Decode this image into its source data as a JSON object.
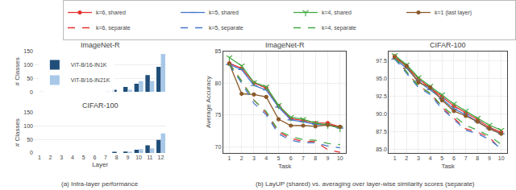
{
  "chart_data": [
    {
      "type": "bar",
      "title": "ImageNet-R",
      "categories": [
        "1",
        "2",
        "3",
        "4",
        "5",
        "6",
        "7",
        "8",
        "9",
        "10",
        "11",
        "12"
      ],
      "series": [
        {
          "name": "ViT-B/16-IN1K",
          "color": "#204e79",
          "values": [
            0,
            0,
            0,
            0,
            0,
            0,
            0,
            8,
            18,
            30,
            62,
            92
          ]
        },
        {
          "name": "ViT-B/16-IN21K",
          "color": "#a8c8e8",
          "values": [
            3,
            0,
            0,
            0,
            0,
            0,
            2,
            0,
            8,
            40,
            40,
            140
          ]
        }
      ],
      "ylabel": "# Classes",
      "ylim": [
        0,
        150
      ],
      "yticks": [
        0,
        50,
        100,
        150
      ],
      "grid": "y",
      "legend": "upper left",
      "tick_labels": "y"
    },
    {
      "type": "bar",
      "title": "CIFAR-100",
      "categories": [
        "1",
        "2",
        "3",
        "4",
        "5",
        "6",
        "7",
        "8",
        "9",
        "10",
        "11",
        "12"
      ],
      "series": [
        {
          "name": "ViT-B/16-IN1K",
          "color": "#204e79",
          "values": [
            0,
            0,
            0,
            0,
            0,
            0,
            0,
            3,
            5,
            12,
            28,
            48
          ]
        },
        {
          "name": "ViT-B/16-IN21K",
          "color": "#a8c8e8",
          "values": [
            0,
            0,
            0,
            0,
            0,
            0,
            0,
            0,
            3,
            14,
            17,
            72
          ]
        }
      ],
      "xlabel": "Layer",
      "ylabel": "# Classes",
      "ylim": [
        0,
        150
      ],
      "yticks": [
        0,
        50,
        100,
        150
      ],
      "grid": "y"
    },
    {
      "type": "line",
      "title": "ImageNet-R",
      "x": [
        1,
        2,
        3,
        4,
        5,
        6,
        7,
        8,
        9,
        10
      ],
      "series": [
        {
          "name": "k=6, shared",
          "color": "#e83030",
          "marker": "circle",
          "line_style": "solid",
          "values": [
            83.1,
            82.3,
            80.0,
            79.2,
            76.4,
            74.4,
            74.1,
            73.7,
            73.7,
            73.1
          ]
        },
        {
          "name": "k=5, shared",
          "color": "#4477cc",
          "marker": "hline",
          "line_style": "solid",
          "values": [
            82.9,
            82.1,
            79.6,
            78.9,
            76.2,
            74.2,
            73.9,
            73.5,
            73.4,
            72.9
          ]
        },
        {
          "name": "k=4, shared",
          "color": "#44aa44",
          "marker": "tri_down",
          "line_style": "solid",
          "values": [
            84.0,
            82.7,
            80.1,
            79.4,
            76.5,
            74.6,
            74.3,
            73.7,
            73.4,
            72.9
          ]
        },
        {
          "name": "k=1 (last layer)",
          "color": "#8B5a2B",
          "marker": "circle",
          "line_style": "solid",
          "values": [
            83.0,
            78.3,
            78.2,
            77.8,
            74.3,
            73.3,
            73.3,
            73.2,
            73.4,
            73.1
          ]
        },
        {
          "name": "k=6, separate",
          "color": "#e83030",
          "line_style": "dashed",
          "values": [
            83.1,
            80.3,
            77.3,
            75.3,
            72.3,
            71.3,
            70.8,
            70.8,
            69.5,
            69.1
          ]
        },
        {
          "name": "k=5, separate",
          "color": "#4477cc",
          "line_style": "dashed",
          "values": [
            82.9,
            80.0,
            76.8,
            75.0,
            72.0,
            71.0,
            70.6,
            70.6,
            70.1,
            69.8
          ]
        },
        {
          "name": "k=4, separate",
          "color": "#44aa44",
          "line_style": "dashed",
          "values": [
            83.0,
            80.3,
            77.3,
            75.5,
            72.5,
            71.6,
            71.1,
            71.0,
            70.5,
            70.3
          ]
        }
      ],
      "xlabel": "Task",
      "ylabel": "Average Accuracy",
      "xlim": [
        0.5,
        10.5
      ],
      "xticks": [
        1,
        2,
        3,
        4,
        5,
        6,
        7,
        8,
        9,
        10
      ],
      "ylim": [
        69,
        85
      ],
      "yticks": [
        70,
        75,
        80,
        85
      ],
      "grid": true,
      "legend": "top"
    },
    {
      "type": "line",
      "title": "CIFAR-100",
      "x": [
        1,
        2,
        3,
        4,
        5,
        6,
        7,
        8,
        9,
        10
      ],
      "series": [
        {
          "name": "k=6, shared",
          "color": "#e83030",
          "marker": "circle",
          "line_style": "solid",
          "values": [
            98.1,
            96.7,
            94.9,
            93.7,
            92.4,
            91.1,
            90.1,
            89.2,
            88.1,
            87.4
          ]
        },
        {
          "name": "k=5, shared",
          "color": "#4477cc",
          "marker": "hline",
          "line_style": "solid",
          "values": [
            97.7,
            96.4,
            94.6,
            93.4,
            92.1,
            90.7,
            89.9,
            88.9,
            87.9,
            87.2
          ]
        },
        {
          "name": "k=4, shared",
          "color": "#44aa44",
          "marker": "tri_down",
          "line_style": "solid",
          "values": [
            98.2,
            96.9,
            95.1,
            93.9,
            92.7,
            91.4,
            90.4,
            89.4,
            88.4,
            87.7
          ]
        },
        {
          "name": "k=1 (last layer)",
          "color": "#8B5a2B",
          "marker": "circle",
          "line_style": "solid",
          "values": [
            97.9,
            96.7,
            94.4,
            93.7,
            91.9,
            90.4,
            89.7,
            88.9,
            87.9,
            87.2
          ]
        },
        {
          "name": "k=6, separate",
          "color": "#e83030",
          "line_style": "dashed",
          "values": [
            98.1,
            95.9,
            93.9,
            92.9,
            90.9,
            89.4,
            87.9,
            87.4,
            86.7,
            84.9
          ]
        },
        {
          "name": "k=5, separate",
          "color": "#4477cc",
          "line_style": "dashed",
          "values": [
            97.7,
            95.7,
            93.7,
            92.7,
            90.7,
            89.2,
            87.7,
            87.2,
            86.4,
            85.1
          ]
        },
        {
          "name": "k=4, separate",
          "color": "#44aa44",
          "line_style": "dashed",
          "values": [
            97.9,
            95.9,
            93.9,
            92.9,
            91.1,
            89.7,
            88.4,
            87.7,
            86.9,
            85.7
          ]
        }
      ],
      "xlabel": "Task",
      "xlim": [
        0.5,
        10.5
      ],
      "xticks": [
        1,
        2,
        3,
        4,
        5,
        6,
        7,
        8,
        9,
        10
      ],
      "ylim": [
        84.5,
        98.8
      ],
      "yticks": [
        {
          "value": 85,
          "label": "85.0"
        },
        87.5,
        {
          "value": 90,
          "label": "90.0"
        },
        92.5,
        {
          "value": 95,
          "label": "95.0"
        },
        97.5
      ],
      "grid": true
    }
  ],
  "annotations": [
    "(a) Intra-layer performance",
    "(b) LayUP (shared) vs. averaging over layer-wise similarity scores (separate)"
  ]
}
